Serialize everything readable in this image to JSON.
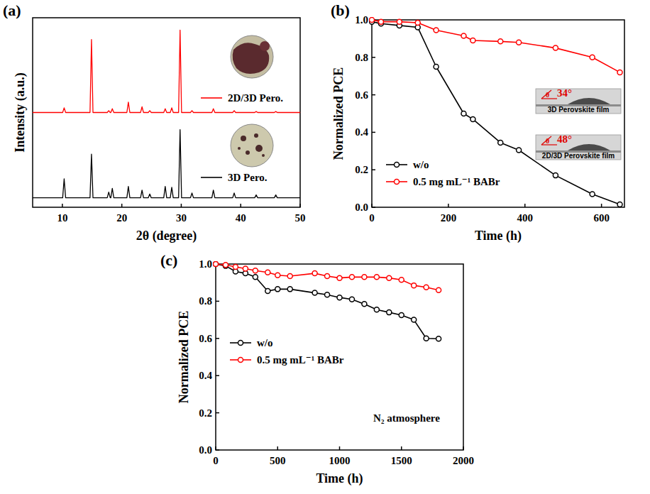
{
  "chart_data": [
    {
      "type": "line",
      "panel_label": "(a)",
      "x_label": "2θ (degree)",
      "y_label": "Intensity (a.u.)",
      "xlim": [
        5,
        50
      ],
      "xticks": [
        10,
        20,
        30,
        40,
        50
      ],
      "ylim": [
        0,
        100
      ],
      "tick_labels": "x",
      "legend": "right",
      "x": [
        5,
        10.05,
        10.3,
        10.55,
        14.65,
        14.9,
        15.15,
        17.55,
        17.8,
        18.05,
        18.15,
        18.4,
        18.65,
        20.85,
        21.1,
        21.35,
        23.15,
        23.4,
        23.65,
        24.45,
        24.7,
        24.95,
        27.05,
        27.3,
        27.55,
        28.15,
        28.4,
        28.65,
        29.55,
        29.8,
        30.05,
        31.55,
        31.8,
        32.05,
        35.15,
        35.4,
        35.65,
        38.65,
        38.9,
        39.15,
        42.35,
        42.6,
        42.85,
        45.65,
        45.9,
        46.15,
        50
      ],
      "series": [
        {
          "name": "2D/3D Pero.",
          "color": "#ff0000",
          "marker": "none",
          "values": [
            50,
            50,
            52.5,
            50,
            50,
            88.5,
            50,
            50,
            51,
            50,
            50,
            52,
            50,
            50,
            55.5,
            50,
            50,
            53,
            50,
            50,
            51,
            50,
            50,
            52,
            50,
            50,
            52.5,
            50,
            50,
            93.5,
            50,
            50,
            51,
            50,
            50,
            52,
            50,
            50,
            51,
            50,
            50,
            50.5,
            50,
            50,
            50.5,
            50,
            50
          ]
        },
        {
          "name": "3D Pero.",
          "color": "#000000",
          "marker": "none",
          "values": [
            5,
            5,
            15,
            5,
            5,
            28,
            5,
            5,
            8,
            5,
            5,
            10,
            5,
            5,
            11,
            5,
            5,
            9,
            5,
            5,
            7,
            5,
            5,
            11,
            5,
            5,
            10.5,
            5,
            5,
            41,
            5,
            5,
            7.5,
            5,
            5,
            9,
            5,
            5,
            7.5,
            5,
            5,
            6.5,
            5,
            5,
            6.5,
            5,
            5
          ]
        }
      ]
    },
    {
      "type": "line",
      "panel_label": "(b)",
      "x_label": "Time (h)",
      "y_label": "Normalized PCE",
      "xlim": [
        0,
        660
      ],
      "xticks": [
        0,
        200,
        400,
        600
      ],
      "ylim": [
        0,
        1
      ],
      "yticks": [
        {
          "value": 0,
          "label": "0.0"
        },
        {
          "value": 0.2,
          "label": "0.2"
        },
        {
          "value": 0.4,
          "label": "0.4"
        },
        {
          "value": 0.6,
          "label": "0.6"
        },
        {
          "value": 0.8,
          "label": "0.8"
        },
        {
          "value": 1,
          "label": "1.0"
        }
      ],
      "legend": "lower left",
      "x": [
        0,
        24,
        72,
        120,
        168,
        240,
        264,
        336,
        384,
        480,
        576,
        648
      ],
      "series": [
        {
          "name": "w/o",
          "color": "#000000",
          "marker": "circle",
          "values": [
            0.99,
            0.98,
            0.97,
            0.96,
            0.75,
            0.5,
            0.47,
            0.345,
            0.305,
            0.17,
            0.07,
            0.015
          ]
        },
        {
          "name": "0.5 mg mL⁻¹ BABr",
          "color": "#ff0000",
          "marker": "circle",
          "values": [
            1.0,
            0.99,
            0.99,
            0.985,
            0.945,
            0.915,
            0.89,
            0.885,
            0.88,
            0.85,
            0.8,
            0.72
          ]
        }
      ],
      "annotations": [
        {
          "text": "3D Perovskite film",
          "symbol": "θ",
          "angle": "34°"
        },
        {
          "text": "2D/3D Perovskite film",
          "symbol": "θ",
          "angle": "48°"
        }
      ]
    },
    {
      "type": "line",
      "panel_label": "(c)",
      "x_label": "Time (h)",
      "y_label": "Normalized PCE",
      "xlim": [
        0,
        2000
      ],
      "xticks": [
        0,
        500,
        1000,
        1500,
        2000
      ],
      "ylim": [
        0,
        1
      ],
      "yticks": [
        {
          "value": 0,
          "label": "0.0"
        },
        {
          "value": 0.2,
          "label": "0.2"
        },
        {
          "value": 0.4,
          "label": "0.4"
        },
        {
          "value": 0.6,
          "label": "0.6"
        },
        {
          "value": 0.8,
          "label": "0.8"
        },
        {
          "value": 1,
          "label": "1.0"
        }
      ],
      "legend": "center left",
      "x": [
        0,
        80,
        160,
        240,
        320,
        420,
        500,
        600,
        800,
        900,
        1000,
        1100,
        1200,
        1300,
        1400,
        1500,
        1600,
        1700,
        1800
      ],
      "series": [
        {
          "name": "w/o",
          "color": "#000000",
          "marker": "circle",
          "values": [
            1.0,
            0.99,
            0.96,
            0.95,
            0.93,
            0.855,
            0.865,
            0.865,
            0.845,
            0.835,
            0.82,
            0.81,
            0.785,
            0.755,
            0.74,
            0.725,
            0.7,
            0.6,
            0.598
          ]
        },
        {
          "name": "0.5 mg mL⁻¹ BABr",
          "color": "#ff0000",
          "marker": "circle",
          "values": [
            1.0,
            0.995,
            0.985,
            0.975,
            0.965,
            0.955,
            0.94,
            0.935,
            0.95,
            0.935,
            0.925,
            0.93,
            0.93,
            0.93,
            0.925,
            0.915,
            0.885,
            0.875,
            0.86
          ]
        }
      ],
      "annotations": [
        {
          "text": "N₂ atmosphere"
        }
      ]
    }
  ]
}
